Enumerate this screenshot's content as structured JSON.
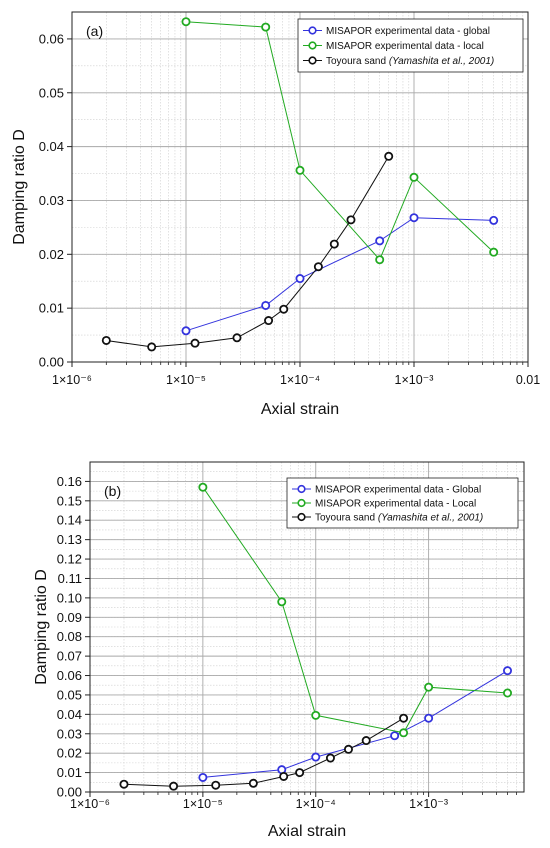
{
  "chart_data": [
    {
      "type": "line",
      "panel_label": "(a)",
      "xscale": "log",
      "xlim": [
        1e-06,
        0.01
      ],
      "ylim": [
        0,
        0.065
      ],
      "xlabel": "Axial strain",
      "ylabel": "Damping ratio D",
      "xticks": [
        {
          "value": 1e-06,
          "label": "1×10⁻⁶"
        },
        {
          "value": 1e-05,
          "label": "1×10⁻⁵"
        },
        {
          "value": 0.0001,
          "label": "1×10⁻⁴"
        },
        {
          "value": 0.001,
          "label": "1×10⁻³"
        },
        {
          "value": 0.01,
          "label": "0.01"
        }
      ],
      "yticks": [
        {
          "value": 0,
          "label": "0.00"
        },
        {
          "value": 0.01,
          "label": "0.01"
        },
        {
          "value": 0.02,
          "label": "0.02"
        },
        {
          "value": 0.03,
          "label": "0.03"
        },
        {
          "value": 0.04,
          "label": "0.04"
        },
        {
          "value": 0.05,
          "label": "0.05"
        },
        {
          "value": 0.06,
          "label": "0.06"
        }
      ],
      "grid": true,
      "legend_position": "top-right",
      "series": [
        {
          "name": "MISAPOR experimental data - global",
          "name_italic": "",
          "color": "#3333dd",
          "x": [
            1e-05,
            5e-05,
            0.0001,
            0.0005,
            0.001,
            0.005
          ],
          "y": [
            0.0058,
            0.0105,
            0.0155,
            0.0225,
            0.0268,
            0.0263
          ]
        },
        {
          "name": "MISAPOR experimental data - local",
          "name_italic": "",
          "color": "#22aa22",
          "x": [
            1e-05,
            5e-05,
            0.0001,
            0.0005,
            0.001,
            0.005
          ],
          "y": [
            0.0632,
            0.0622,
            0.0356,
            0.019,
            0.0343,
            0.0204
          ]
        },
        {
          "name": "Toyoura sand ",
          "name_italic": "(Yamashita et al., 2001)",
          "color": "#111111",
          "x": [
            2e-06,
            5e-06,
            1.2e-05,
            2.8e-05,
            5.3e-05,
            7.2e-05,
            0.000145,
            0.0002,
            0.00028,
            0.0006
          ],
          "y": [
            0.004,
            0.0028,
            0.0035,
            0.0045,
            0.0077,
            0.0098,
            0.0177,
            0.0219,
            0.0264,
            0.0382
          ]
        }
      ]
    },
    {
      "type": "line",
      "panel_label": "(b)",
      "xscale": "log",
      "xlim": [
        1e-06,
        0.007
      ],
      "ylim": [
        0,
        0.17
      ],
      "xlabel": "Axial strain",
      "ylabel": "Damping ratio D",
      "xticks": [
        {
          "value": 1e-06,
          "label": "1×10⁻⁶"
        },
        {
          "value": 1e-05,
          "label": "1×10⁻⁵"
        },
        {
          "value": 0.0001,
          "label": "1×10⁻⁴"
        },
        {
          "value": 0.001,
          "label": "1×10⁻³"
        }
      ],
      "yticks": [
        {
          "value": 0,
          "label": "0.00"
        },
        {
          "value": 0.01,
          "label": "0.01"
        },
        {
          "value": 0.02,
          "label": "0.02"
        },
        {
          "value": 0.03,
          "label": "0.03"
        },
        {
          "value": 0.04,
          "label": "0.04"
        },
        {
          "value": 0.05,
          "label": "0.05"
        },
        {
          "value": 0.06,
          "label": "0.06"
        },
        {
          "value": 0.07,
          "label": "0.07"
        },
        {
          "value": 0.08,
          "label": "0.08"
        },
        {
          "value": 0.09,
          "label": "0.09"
        },
        {
          "value": 0.1,
          "label": "0.10"
        },
        {
          "value": 0.11,
          "label": "0.11"
        },
        {
          "value": 0.12,
          "label": "0.12"
        },
        {
          "value": 0.13,
          "label": "0.13"
        },
        {
          "value": 0.14,
          "label": "0.14"
        },
        {
          "value": 0.15,
          "label": "0.15"
        },
        {
          "value": 0.16,
          "label": "0.16"
        }
      ],
      "grid": true,
      "legend_position": "top-right",
      "series": [
        {
          "name": "MISAPOR experimental data - Global",
          "name_italic": "",
          "color": "#3333dd",
          "x": [
            1e-05,
            5e-05,
            0.0001,
            0.0005,
            0.001,
            0.005
          ],
          "y": [
            0.0075,
            0.0115,
            0.018,
            0.029,
            0.038,
            0.0625
          ]
        },
        {
          "name": "MISAPOR experimental data - Local",
          "name_italic": "",
          "color": "#22aa22",
          "x": [
            1e-05,
            5e-05,
            0.0001,
            0.0006,
            0.001,
            0.005
          ],
          "y": [
            0.157,
            0.098,
            0.0395,
            0.0305,
            0.054,
            0.051
          ]
        },
        {
          "name": "Toyoura sand ",
          "name_italic": "(Yamashita et al., 2001)",
          "color": "#111111",
          "x": [
            2e-06,
            5.5e-06,
            1.3e-05,
            2.8e-05,
            5.2e-05,
            7.2e-05,
            0.000135,
            0.000195,
            0.00028,
            0.0006
          ],
          "y": [
            0.004,
            0.003,
            0.0035,
            0.0045,
            0.008,
            0.01,
            0.0175,
            0.022,
            0.0265,
            0.038
          ]
        }
      ]
    }
  ]
}
